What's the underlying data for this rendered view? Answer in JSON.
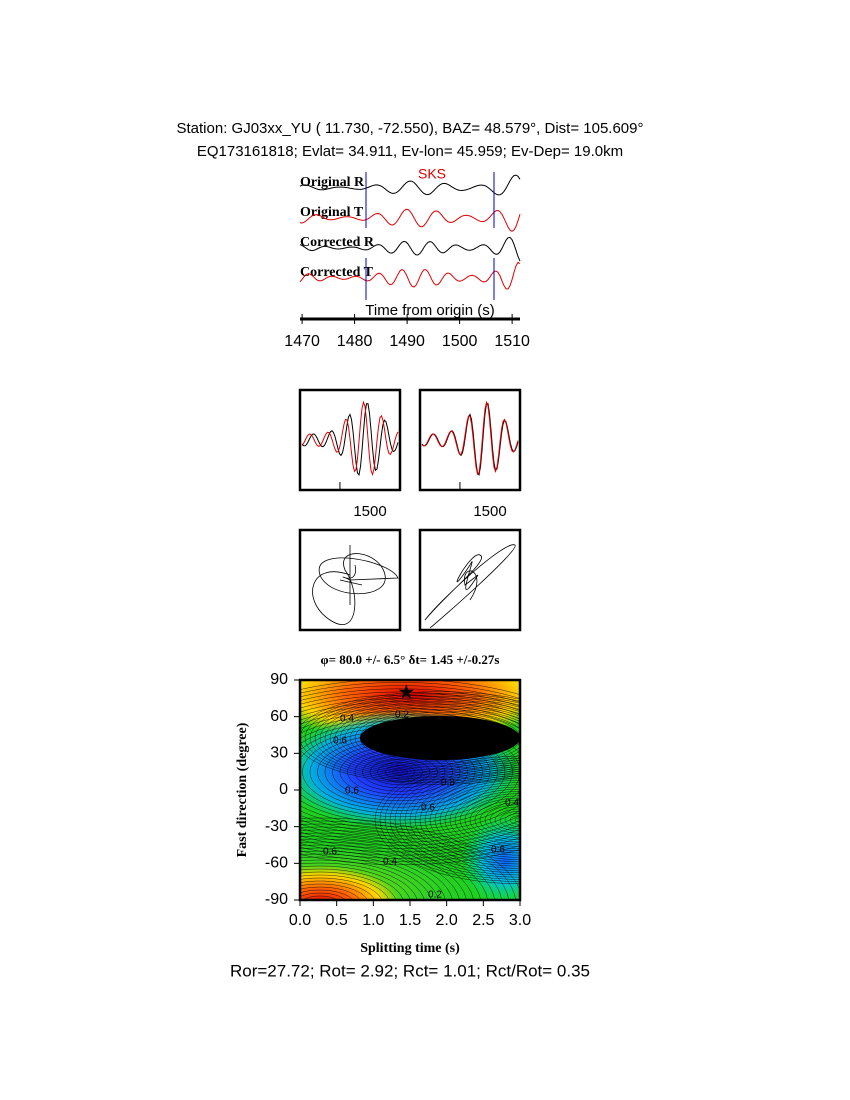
{
  "header": {
    "line1": "Station: GJ03xx_YU (  11.730,  -72.550), BAZ=   48.579°, Dist=  105.609°",
    "line2": "EQ173161818; Evlat=  34.911, Ev-lon=  45.959; Ev-Dep= 19.0km"
  },
  "traces": {
    "labels": [
      "Original R",
      "Original T",
      "Corrected R",
      "Corrected T"
    ],
    "phase": "SKS",
    "xlabel": "Time from origin (s)",
    "xlim": [
      1469.6,
      1511.5
    ],
    "xticks": [
      1470,
      1480,
      1490,
      1500,
      1510
    ]
  },
  "windows": {
    "xlim": [
      1486.7,
      1520
    ],
    "left_tick": 1500,
    "right_tick": 1500
  },
  "grid": {
    "title": "φ= 80.0 +/- 6.5° δt= 1.45 +/-0.27s",
    "xlabel": "Splitting time (s)",
    "ylabel": "Fast direction (degree)",
    "xlim": [
      0,
      3
    ],
    "ylim": [
      -90,
      90
    ],
    "xticks": [
      {
        "value": 0,
        "label": "0.0"
      },
      {
        "value": 0.5,
        "label": "0.5"
      },
      {
        "value": 1,
        "label": "1.0"
      },
      {
        "value": 1.5,
        "label": "1.5"
      },
      {
        "value": 2,
        "label": "2.0"
      },
      {
        "value": 2.5,
        "label": "2.5"
      },
      {
        "value": 3,
        "label": "3.0"
      }
    ],
    "yticks": [
      -90,
      -60,
      -30,
      0,
      30,
      60,
      90
    ],
    "best": {
      "x": 1.45,
      "y": 80
    },
    "contour_labels": [
      0.4,
      0.2,
      0.4,
      0.6,
      0.8,
      0.6,
      0.8,
      0.6,
      0.6,
      0.4,
      0.6,
      0.6,
      0.4,
      0.2
    ]
  },
  "footer": "Ror=27.72; Rot= 2.92; Rct= 1.01; Rct/Rot= 0.35"
}
